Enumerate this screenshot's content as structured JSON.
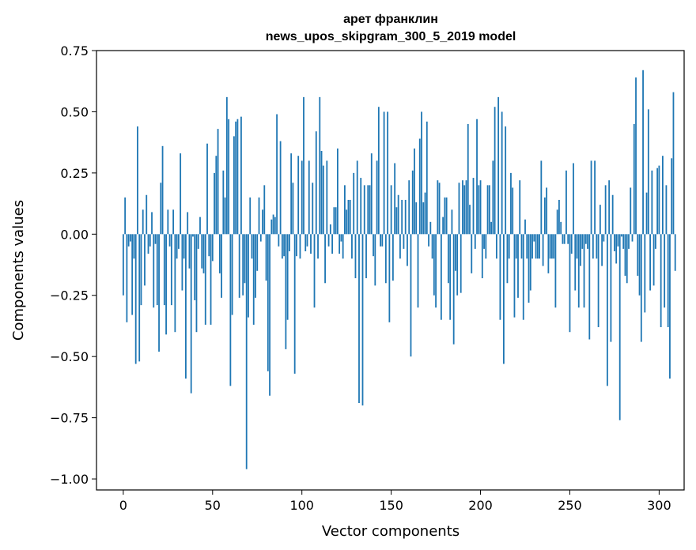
{
  "chart_data": {
    "type": "bar",
    "title": "арет франклин",
    "subtitle": "news_upos_skipgram_300_5_2019 model",
    "xlabel": "Vector components",
    "ylabel": "Components values",
    "xlim": [
      -15,
      314
    ],
    "ylim": [
      -1.045,
      0.75
    ],
    "xticks": [
      0,
      50,
      100,
      150,
      200,
      250,
      300
    ],
    "xtick_labels": [
      "0",
      "50",
      "100",
      "150",
      "200",
      "250",
      "300"
    ],
    "yticks": [
      0.75,
      0.5,
      0.25,
      0.0,
      -0.25,
      -0.5,
      -0.75,
      -1.0
    ],
    "ytick_labels": [
      "0.75",
      "0.50",
      "0.25",
      "0.00",
      "−0.25",
      "−0.50",
      "−0.75",
      "−1.00"
    ],
    "grid": false,
    "bar_color": "#1f77b4",
    "values": [
      -0.25,
      0.15,
      -0.36,
      -0.05,
      -0.03,
      -0.33,
      -0.1,
      -0.53,
      0.44,
      -0.52,
      -0.29,
      0.1,
      -0.21,
      0.16,
      -0.08,
      -0.05,
      0.09,
      -0.3,
      -0.04,
      -0.29,
      -0.48,
      0.21,
      0.36,
      -0.29,
      -0.41,
      0.1,
      -0.05,
      -0.29,
      0.1,
      -0.4,
      -0.1,
      -0.06,
      0.33,
      -0.23,
      -0.1,
      -0.59,
      0.09,
      -0.14,
      -0.65,
      -0.01,
      -0.27,
      -0.4,
      -0.06,
      0.07,
      -0.14,
      -0.16,
      -0.37,
      0.37,
      -0.09,
      -0.37,
      -0.11,
      0.25,
      0.32,
      0.43,
      -0.16,
      -0.26,
      0.26,
      0.15,
      0.56,
      0.47,
      -0.62,
      -0.33,
      0.4,
      0.46,
      0.47,
      -0.26,
      0.48,
      -0.25,
      -0.2,
      -0.96,
      -0.34,
      0.15,
      -0.1,
      -0.37,
      -0.26,
      -0.15,
      0.15,
      -0.03,
      0.1,
      0.2,
      -0.19,
      -0.56,
      -0.66,
      0.06,
      0.08,
      0.07,
      0.49,
      -0.05,
      0.38,
      -0.1,
      -0.09,
      -0.47,
      -0.35,
      -0.07,
      0.33,
      0.21,
      -0.57,
      -0.09,
      0.32,
      -0.1,
      0.3,
      0.56,
      -0.07,
      -0.05,
      0.3,
      -0.08,
      0.21,
      -0.3,
      0.42,
      -0.1,
      0.56,
      0.34,
      0.28,
      -0.2,
      0.3,
      -0.05,
      0.04,
      -0.08,
      0.11,
      0.11,
      0.35,
      -0.08,
      -0.03,
      -0.1,
      0.2,
      0.1,
      0.14,
      0.14,
      -0.1,
      0.25,
      -0.18,
      0.3,
      -0.69,
      0.23,
      -0.7,
      0.2,
      -0.18,
      0.2,
      0.2,
      0.33,
      -0.09,
      -0.21,
      0.3,
      0.52,
      -0.05,
      -0.05,
      0.5,
      -0.2,
      0.5,
      -0.36,
      0.2,
      -0.19,
      0.29,
      0.11,
      0.16,
      -0.1,
      0.14,
      -0.06,
      0.14,
      -0.13,
      0.22,
      -0.5,
      0.26,
      0.35,
      0.13,
      -0.3,
      0.39,
      0.5,
      0.13,
      0.17,
      0.46,
      -0.05,
      0.05,
      -0.1,
      -0.25,
      -0.3,
      0.22,
      0.21,
      -0.35,
      0.07,
      0.15,
      0.15,
      -0.2,
      -0.35,
      0.1,
      -0.45,
      -0.15,
      -0.25,
      0.21,
      -0.24,
      0.22,
      0.2,
      0.22,
      0.45,
      0.12,
      -0.16,
      0.23,
      -0.06,
      0.47,
      0.2,
      0.22,
      -0.18,
      -0.06,
      -0.1,
      0.2,
      0.2,
      0.05,
      0.3,
      0.52,
      -0.1,
      0.56,
      -0.35,
      0.5,
      -0.53,
      0.44,
      -0.2,
      -0.1,
      0.25,
      0.19,
      -0.34,
      -0.1,
      -0.26,
      0.22,
      -0.1,
      -0.35,
      0.06,
      -0.1,
      -0.28,
      -0.23,
      -0.1,
      -0.03,
      -0.1,
      -0.1,
      -0.1,
      0.3,
      -0.13,
      0.15,
      0.19,
      -0.16,
      -0.1,
      -0.1,
      -0.1,
      -0.3,
      0.1,
      0.14,
      0.05,
      -0.04,
      -0.04,
      0.26,
      -0.04,
      -0.4,
      -0.08,
      0.29,
      -0.23,
      -0.1,
      -0.3,
      -0.13,
      -0.06,
      -0.3,
      -0.04,
      -0.06,
      -0.43,
      0.3,
      -0.1,
      0.3,
      -0.1,
      -0.38,
      0.12,
      -0.13,
      -0.03,
      0.2,
      -0.62,
      0.22,
      -0.44,
      0.16,
      -0.07,
      -0.12,
      -0.05,
      -0.76,
      -0.01,
      -0.06,
      -0.17,
      -0.2,
      -0.06,
      0.19,
      -0.03,
      0.45,
      0.64,
      -0.17,
      -0.25,
      -0.44,
      0.67,
      -0.32,
      0.17,
      0.51,
      -0.23,
      0.26,
      -0.21,
      -0.06,
      0.27,
      0.28,
      -0.38,
      0.32,
      -0.3,
      0.2,
      -0.38,
      -0.59,
      0.31,
      0.58,
      -0.15
    ]
  }
}
